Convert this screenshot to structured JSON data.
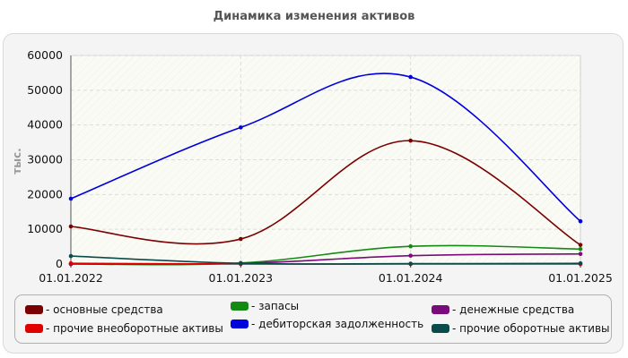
{
  "chart_data": {
    "type": "line",
    "title": "Динамика изменения активов",
    "ylabel": "тыс.",
    "xlabel": "",
    "categories": [
      "01.01.2022",
      "01.01.2023",
      "01.01.2024",
      "01.01.2025"
    ],
    "ylim": [
      0,
      60000
    ],
    "yticks": [
      0,
      10000,
      20000,
      30000,
      40000,
      50000,
      60000
    ],
    "grid": true,
    "legend_position": "bottom",
    "series": [
      {
        "name": "- основные средства",
        "color": "#7b0000",
        "values": [
          10800,
          7200,
          35500,
          5500
        ]
      },
      {
        "name": "- запасы",
        "color": "#138a13",
        "values": [
          0,
          300,
          5100,
          4300
        ]
      },
      {
        "name": "- денежные средства",
        "color": "#7b0a7b",
        "values": [
          0,
          200,
          2400,
          2900
        ]
      },
      {
        "name": "- прочие внеоборотные активы",
        "color": "#e00000",
        "values": [
          200,
          0,
          0,
          0
        ]
      },
      {
        "name": "- дебиторская задолженность",
        "color": "#0000dd",
        "values": [
          18800,
          39300,
          53800,
          12300
        ]
      },
      {
        "name": "- прочие оборотные активы",
        "color": "#0a4a4a",
        "values": [
          2300,
          200,
          100,
          200
        ]
      }
    ]
  }
}
